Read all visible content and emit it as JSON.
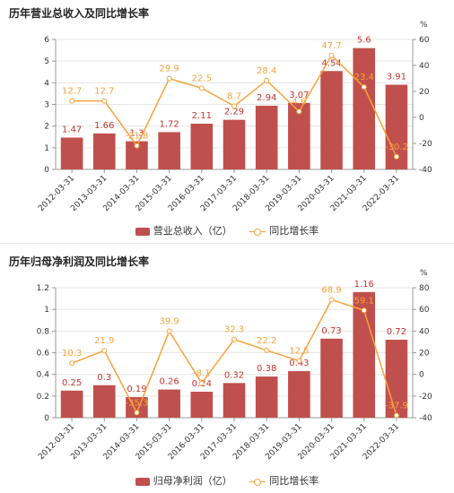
{
  "colors": {
    "bar": "#c0504d",
    "line": "#f5a33c",
    "grid": "#e6e6e6",
    "axis": "#999999"
  },
  "chart_data": [
    {
      "type": "bar",
      "title": "历年营业总收入及同比增长率",
      "categories": [
        "2012-03-31",
        "2013-03-31",
        "2014-03-31",
        "2015-03-31",
        "2016-03-31",
        "2017-03-31",
        "2018-03-31",
        "2019-03-31",
        "2020-03-31",
        "2021-03-31",
        "2022-03-31"
      ],
      "series": [
        {
          "name": "营业总收入（亿）",
          "type": "bar",
          "axis": "left",
          "values": [
            1.47,
            1.66,
            1.3,
            1.72,
            2.11,
            2.29,
            2.94,
            3.07,
            4.54,
            5.6,
            3.91
          ],
          "labels": [
            "1.47",
            "1.66",
            "1.3",
            "1.72",
            "2.11",
            "2.29",
            "2.94",
            "3.07",
            "4.54",
            "5.6",
            "3.91"
          ]
        },
        {
          "name": "同比增长率",
          "type": "line",
          "axis": "right",
          "values": [
            12.7,
            12.7,
            -21.8,
            29.9,
            22.5,
            8.7,
            28.4,
            4.6,
            47.7,
            23.4,
            -30.2
          ],
          "labels": [
            "12.7",
            "12.7",
            "-21.8",
            "29.9",
            "22.5",
            "8.7",
            "28.4",
            "4.6",
            "47.7",
            "23.4",
            "-30.2"
          ]
        }
      ],
      "ylim": [
        0,
        6
      ],
      "yticks": [
        "0",
        "1",
        "2",
        "3",
        "4",
        "5",
        "6"
      ],
      "y2lim": [
        -40,
        60
      ],
      "y2ticks": [
        "-40",
        "-20",
        "0",
        "20",
        "40",
        "60"
      ],
      "y2unit": "%",
      "grid": true,
      "legend": "bottom-center"
    },
    {
      "type": "bar",
      "title": "历年归母净利润及同比增长率",
      "categories": [
        "2012-03-31",
        "2013-03-31",
        "2014-03-31",
        "2015-03-31",
        "2016-03-31",
        "2017-03-31",
        "2018-03-31",
        "2019-03-31",
        "2020-03-31",
        "2021-03-31",
        "2022-03-31"
      ],
      "series": [
        {
          "name": "归母净利润（亿）",
          "type": "bar",
          "axis": "left",
          "values": [
            0.25,
            0.3,
            0.19,
            0.26,
            0.24,
            0.32,
            0.38,
            0.43,
            0.73,
            1.16,
            0.72
          ],
          "labels": [
            "0.25",
            "0.3",
            "0.19",
            "0.26",
            "0.24",
            "0.32",
            "0.38",
            "0.43",
            "0.73",
            "1.16",
            "0.72"
          ]
        },
        {
          "name": "同比增长率",
          "type": "line",
          "axis": "right",
          "values": [
            10.3,
            21.9,
            -35.3,
            39.9,
            -8.1,
            32.3,
            22.2,
            12.5,
            68.9,
            59.1,
            -37.9
          ],
          "labels": [
            "10.3",
            "21.9",
            "-35.3",
            "39.9",
            "-8.1",
            "32.3",
            "22.2",
            "12.5",
            "68.9",
            "59.1",
            "-37.9"
          ]
        }
      ],
      "ylim": [
        0,
        1.2
      ],
      "yticks": [
        "0",
        "0.2",
        "0.4",
        "0.6",
        "0.8",
        "1",
        "1.2"
      ],
      "y2lim": [
        -40,
        80
      ],
      "y2ticks": [
        "-40",
        "-20",
        "0",
        "20",
        "40",
        "60",
        "80"
      ],
      "y2unit": "%",
      "grid": true,
      "legend": "bottom-center"
    }
  ]
}
